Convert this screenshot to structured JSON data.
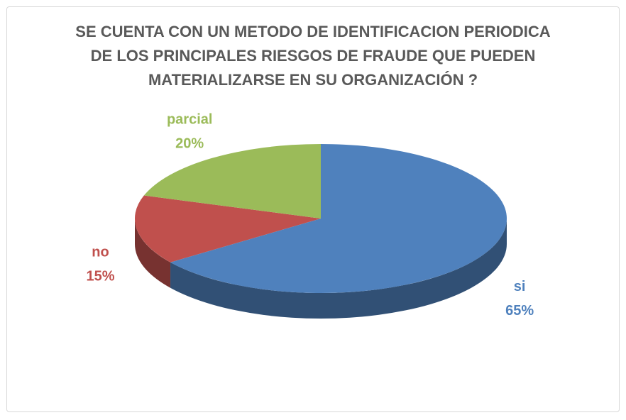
{
  "chart_data": {
    "type": "pie",
    "title": "SE CUENTA CON UN METODO DE IDENTIFICACION PERIODICA DE LOS PRINCIPALES RIESGOS DE FRAUDE QUE PUEDEN MATERIALIZARSE EN SU ORGANIZACIÓN ?",
    "categories": [
      "si",
      "no",
      "parcial"
    ],
    "values": [
      65,
      15,
      20
    ],
    "value_labels": [
      "65%",
      "15%",
      "20%"
    ],
    "colors": [
      "#4f81bd",
      "#c0504d",
      "#9bbb59"
    ]
  }
}
